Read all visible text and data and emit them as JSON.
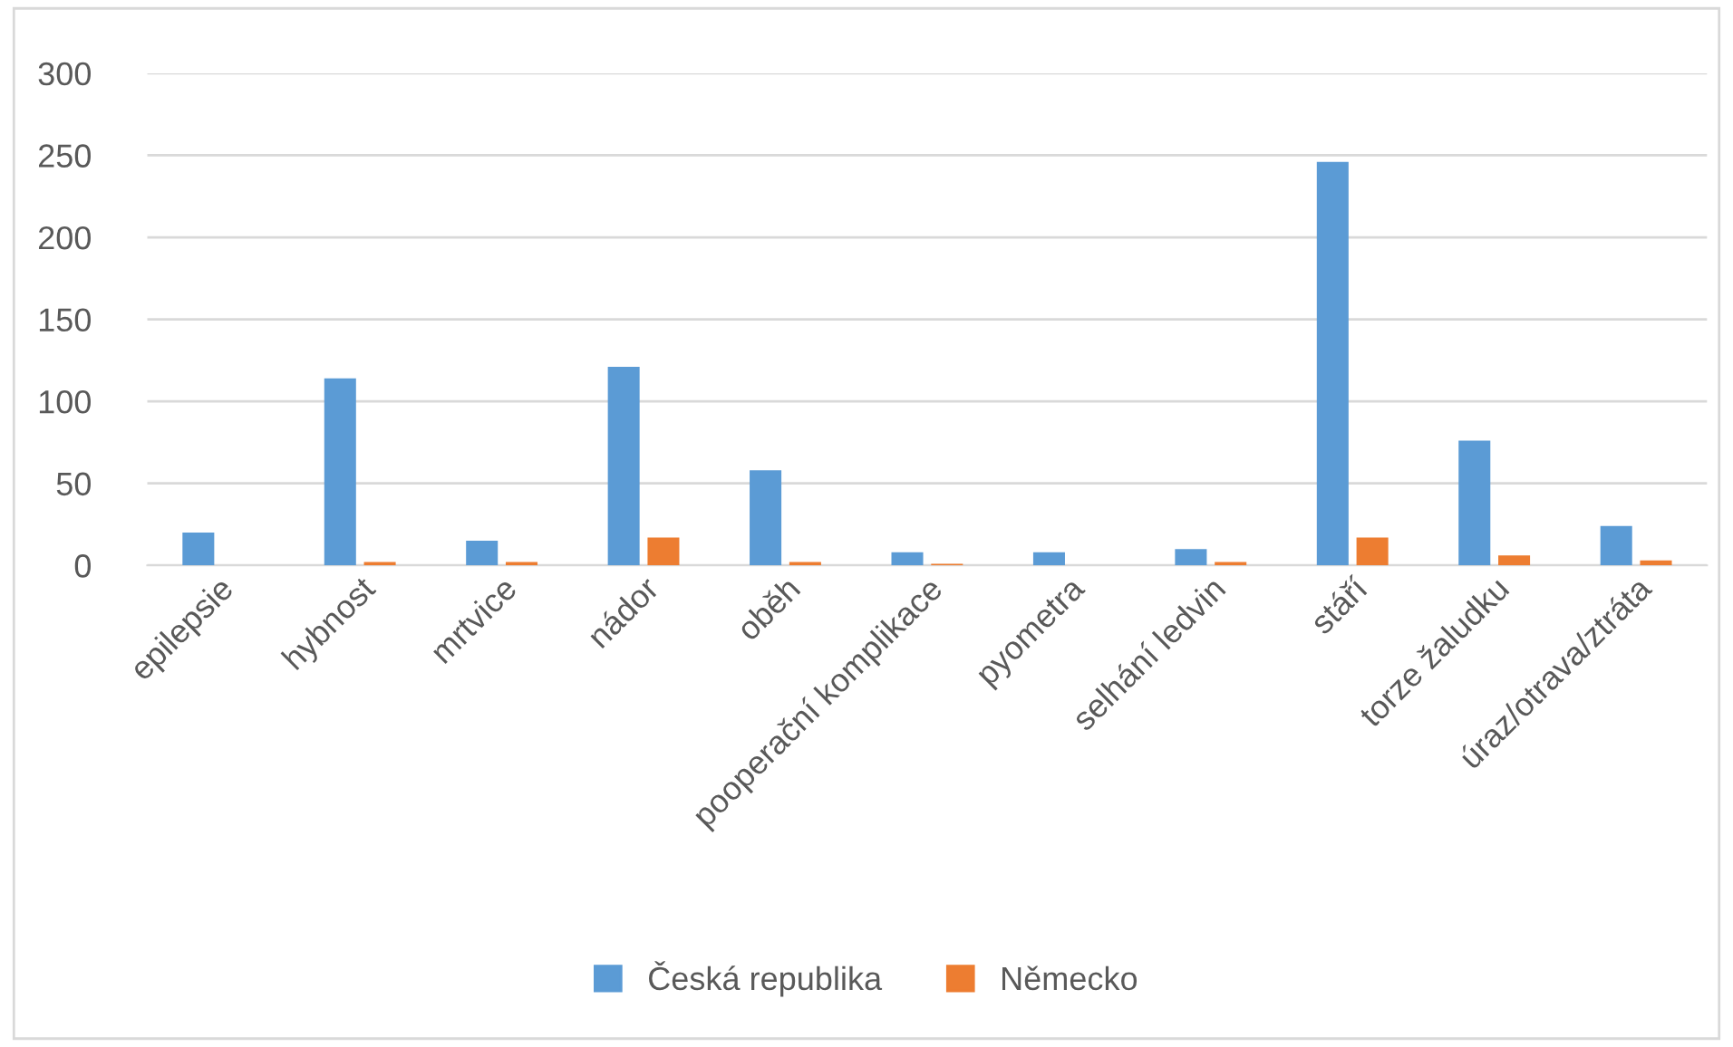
{
  "chart_data": {
    "type": "bar",
    "categories": [
      "epilepsie",
      "hybnost",
      "mrtvice",
      "nádor",
      "oběh",
      "pooperační komplikace",
      "pyometra",
      "selhání ledvin",
      "stáří",
      "torze žaludku",
      "úraz/otrava/ztráta"
    ],
    "series": [
      {
        "name": "Česká republika",
        "color": "#5b9bd5",
        "values": [
          20,
          114,
          15,
          121,
          58,
          8,
          8,
          10,
          246,
          76,
          24
        ]
      },
      {
        "name": "Německo",
        "color": "#ed7d31",
        "values": [
          0,
          2,
          2,
          17,
          2,
          1,
          0,
          2,
          17,
          6,
          3
        ]
      }
    ],
    "ylim": [
      0,
      300
    ],
    "yticks": [
      0,
      50,
      100,
      150,
      200,
      250,
      300
    ],
    "grid": "y",
    "legend": "bottom"
  }
}
